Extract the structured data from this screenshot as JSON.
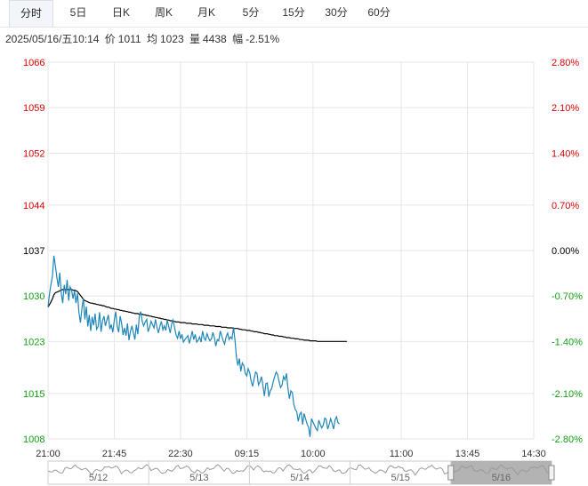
{
  "tabs": [
    {
      "label": "分时",
      "active": true
    },
    {
      "label": "5日",
      "active": false
    },
    {
      "label": "日K",
      "active": false
    },
    {
      "label": "周K",
      "active": false
    },
    {
      "label": "月K",
      "active": false
    },
    {
      "label": "5分",
      "active": false
    },
    {
      "label": "15分",
      "active": false
    },
    {
      "label": "30分",
      "active": false
    },
    {
      "label": "60分",
      "active": false
    }
  ],
  "info": {
    "datetime": "2025/05/16/五10:14",
    "price_label": "价",
    "price": "1011",
    "avg_label": "均",
    "avg": "1023",
    "volume_label": "量",
    "volume": "4438",
    "change_label": "幅",
    "change": "-2.51%"
  },
  "colors": {
    "up": "#e00000",
    "down": "#14a014",
    "neutral": "#000000",
    "price_line": "#1f86b8",
    "avg_line": "#000000",
    "grid": "#e6e6e6",
    "navigator_line": "#9a9a9a",
    "navigator_selected": "#a6a6a6"
  },
  "chart_data": {
    "type": "line",
    "y_ticks": [
      "1066",
      "1059",
      "1052",
      "1044",
      "1037",
      "1030",
      "1023",
      "1015",
      "1008"
    ],
    "y_tick_values": [
      1066,
      1059,
      1052,
      1044,
      1037,
      1030,
      1023,
      1015,
      1008
    ],
    "y_tick_status": [
      "up",
      "up",
      "up",
      "up",
      "neutral",
      "down",
      "down",
      "down",
      "down"
    ],
    "pct_ticks": [
      "2.80%",
      "2.10%",
      "1.40%",
      "0.70%",
      "0.00%",
      "-0.70%",
      "-1.40%",
      "-2.10%",
      "-2.80%"
    ],
    "ylim": [
      1008,
      1066
    ],
    "prev_close": 1037,
    "x_ticks": [
      "21:00",
      "21:45",
      "22:30",
      "09:15",
      "10:00",
      "11:00",
      "13:45",
      "14:30"
    ],
    "x_tick_index": [
      0,
      45,
      90,
      135,
      180,
      240,
      285,
      330
    ],
    "x_max_index": 330,
    "series": [
      {
        "key": "price",
        "values": [
          1028.3,
          1030.4,
          1031.8,
          1033.1,
          1036.2,
          1034.6,
          1032.9,
          1031.4,
          1033.6,
          1030.4,
          1028.9,
          1031.7,
          1030.3,
          1032.5,
          1029.3,
          1031.4,
          1030.9,
          1029.6,
          1030.8,
          1028.9,
          1030.4,
          1027.5,
          1025.9,
          1028.1,
          1029.6,
          1026.4,
          1028.4,
          1025.3,
          1027.1,
          1024.6,
          1026.8,
          1025.5,
          1027.3,
          1024.9,
          1025.3,
          1027.5,
          1024.5,
          1026.2,
          1026.9,
          1025.4,
          1026.3,
          1027.1,
          1024.9,
          1025.6,
          1024.4,
          1026.3,
          1027.6,
          1025.3,
          1024.4,
          1026.9,
          1025.8,
          1024.0,
          1025.1,
          1023.9,
          1025.8,
          1023.2,
          1024.6,
          1025.4,
          1024.3,
          1023.3,
          1025.6,
          1024.1,
          1026.9,
          1027.6,
          1026.1,
          1025.4,
          1026.0,
          1026.4,
          1024.5,
          1025.2,
          1026.1,
          1025.6,
          1025.1,
          1026.4,
          1025.2,
          1024.3,
          1025.3,
          1026.1,
          1024.8,
          1025.4,
          1024.7,
          1026.3,
          1025.3,
          1024.3,
          1025.7,
          1026.3,
          1025.1,
          1024.0,
          1023.5,
          1024.6,
          1023.4,
          1024.1,
          1022.9,
          1023.3,
          1023.6,
          1023.9,
          1022.7,
          1023.6,
          1024.6,
          1023.3,
          1024.1,
          1022.9,
          1023.2,
          1023.7,
          1022.9,
          1024.6,
          1023.5,
          1023.2,
          1024.2,
          1023.6,
          1023.1,
          1023.4,
          1024.4,
          1023.6,
          1022.3,
          1023.3,
          1023.1,
          1024.6,
          1023.9,
          1023.1,
          1022.6,
          1023.7,
          1024.3,
          1023.3,
          1023.7,
          1023.4,
          1025.2,
          1023.3,
          1020.6,
          1019.3,
          1020.4,
          1018.4,
          1019.7,
          1019.3,
          1018.1,
          1017.7,
          1018.8,
          1018.2,
          1016.9,
          1016.1,
          1017.2,
          1018.3,
          1018.1,
          1016.3,
          1016.8,
          1017.6,
          1016.2,
          1014.6,
          1016.5,
          1016.6,
          1014.5,
          1015.4,
          1015.8,
          1016.8,
          1017.6,
          1018.3,
          1017.9,
          1016.8,
          1015.9,
          1016.3,
          1017.6,
          1017.1,
          1018.1,
          1015.8,
          1014.2,
          1015.4,
          1015.1,
          1013.3,
          1012.5,
          1012.2,
          1010.7,
          1011.8,
          1012.1,
          1010.2,
          1011.9,
          1011.1,
          1010.3,
          1009.8,
          1008.3,
          1011.1,
          1010.6,
          1010.1,
          1009.6,
          1009.3,
          1010.9,
          1010.2,
          1009.7,
          1010.1,
          1011.2,
          1011.0,
          1009.5,
          1010.2,
          1011.1,
          1010.4,
          1009.5,
          1010.9,
          1011.4,
          1010.5,
          1010.3
        ]
      },
      {
        "key": "avg",
        "values": [
          1028.3,
          1028.7,
          1029.1,
          1029.6,
          1030.2,
          1030.5,
          1030.6,
          1030.7,
          1030.8,
          1030.9,
          1031.0,
          1031.0,
          1031.0,
          1031.0,
          1031.0,
          1031.0,
          1031.0,
          1030.9,
          1030.9,
          1030.8,
          1030.7,
          1030.4,
          1030.1,
          1029.8,
          1029.5,
          1029.3,
          1029.2,
          1029.1,
          1029.0,
          1028.9,
          1028.9,
          1028.8,
          1028.8,
          1028.7,
          1028.7,
          1028.6,
          1028.6,
          1028.5,
          1028.5,
          1028.4,
          1028.3,
          1028.3,
          1028.2,
          1028.1,
          1028.1,
          1028.0,
          1028.0,
          1027.9,
          1027.9,
          1027.8,
          1027.8,
          1027.7,
          1027.7,
          1027.6,
          1027.6,
          1027.5,
          1027.5,
          1027.4,
          1027.4,
          1027.3,
          1027.3,
          1027.3,
          1027.2,
          1027.2,
          1027.2,
          1027.1,
          1027.1,
          1027.0,
          1027.0,
          1026.9,
          1026.9,
          1026.8,
          1026.8,
          1026.7,
          1026.7,
          1026.6,
          1026.6,
          1026.5,
          1026.5,
          1026.4,
          1026.4,
          1026.3,
          1026.3,
          1026.2,
          1026.2,
          1026.1,
          1026.1,
          1026.0,
          1026.0,
          1026.0,
          1025.9,
          1025.9,
          1025.9,
          1025.9,
          1025.8,
          1025.8,
          1025.8,
          1025.8,
          1025.7,
          1025.7,
          1025.7,
          1025.7,
          1025.6,
          1025.6,
          1025.6,
          1025.6,
          1025.5,
          1025.5,
          1025.5,
          1025.5,
          1025.4,
          1025.4,
          1025.4,
          1025.4,
          1025.3,
          1025.3,
          1025.3,
          1025.3,
          1025.2,
          1025.2,
          1025.2,
          1025.2,
          1025.1,
          1025.1,
          1025.1,
          1025.1,
          1025.0,
          1025.0,
          1025.0,
          1025.0,
          1024.9,
          1024.9,
          1024.8,
          1024.8,
          1024.8,
          1024.7,
          1024.7,
          1024.7,
          1024.6,
          1024.6,
          1024.5,
          1024.5,
          1024.5,
          1024.4,
          1024.4,
          1024.3,
          1024.3,
          1024.2,
          1024.2,
          1024.2,
          1024.1,
          1024.1,
          1024.0,
          1024.0,
          1023.9,
          1023.9,
          1023.9,
          1023.8,
          1023.8,
          1023.8,
          1023.7,
          1023.7,
          1023.6,
          1023.6,
          1023.6,
          1023.5,
          1023.5,
          1023.5,
          1023.4,
          1023.4,
          1023.4,
          1023.3,
          1023.3,
          1023.3,
          1023.2,
          1023.2,
          1023.2,
          1023.2,
          1023.1,
          1023.1,
          1023.1,
          1023.1,
          1023.1,
          1023.0,
          1023.0,
          1023.0,
          1023.0,
          1023.0,
          1023.0,
          1023.0,
          1023.0,
          1023.0,
          1023.0,
          1023.0,
          1023.0,
          1023.0,
          1023.0,
          1023.0,
          1023.0,
          1023.0,
          1023.0,
          1023.0,
          1023.0,
          1023.0
        ]
      }
    ]
  },
  "navigator": {
    "labels": [
      "5/12",
      "5/13",
      "5/14",
      "5/15",
      "5/16"
    ],
    "selected_index": 4
  }
}
